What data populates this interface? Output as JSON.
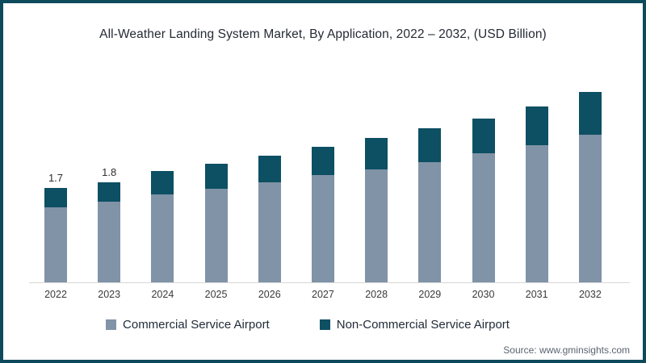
{
  "chart_data": {
    "type": "bar",
    "stacked": true,
    "title": "All-Weather Landing System Market, By Application, 2022 – 2032, (USD Billion)",
    "categories": [
      "2022",
      "2023",
      "2024",
      "2025",
      "2026",
      "2027",
      "2028",
      "2029",
      "2030",
      "2031",
      "2032"
    ],
    "series": [
      {
        "name": "Commercial Service Airport",
        "color": "#8093a7",
        "values": [
          1.35,
          1.45,
          1.58,
          1.68,
          1.8,
          1.93,
          2.03,
          2.16,
          2.32,
          2.46,
          2.65
        ]
      },
      {
        "name": "Non-Commercial Service Airport",
        "color": "#0d4f63",
        "values": [
          0.35,
          0.35,
          0.42,
          0.45,
          0.48,
          0.5,
          0.57,
          0.61,
          0.62,
          0.7,
          0.77
        ]
      }
    ],
    "totals": [
      1.7,
      1.8,
      2.0,
      2.13,
      2.28,
      2.43,
      2.6,
      2.77,
      2.94,
      3.16,
      3.42
    ],
    "bar_labels": [
      "1.7",
      "1.8",
      "",
      "",
      "",
      "",
      "",
      "",
      "",
      "",
      ""
    ],
    "xlabel": "",
    "ylabel": "",
    "ylim": [
      0,
      3.6
    ],
    "grid": false,
    "legend_position": "bottom",
    "accent_border_color": "#0d4a5c",
    "axis_line_color": "#d8d8d8"
  },
  "source": {
    "text": "Source: www.gminsights.com"
  }
}
